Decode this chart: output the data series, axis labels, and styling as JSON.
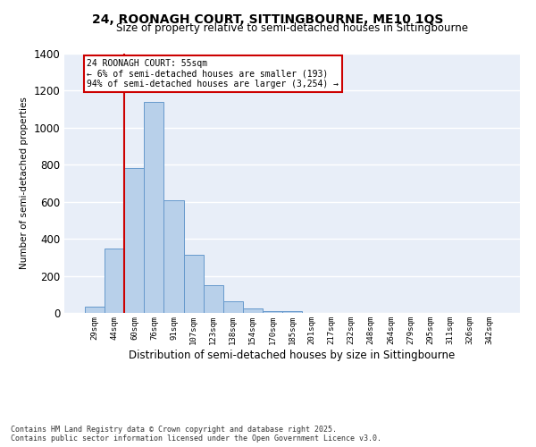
{
  "title1": "24, ROONAGH COURT, SITTINGBOURNE, ME10 1QS",
  "title2": "Size of property relative to semi-detached houses in Sittingbourne",
  "xlabel": "Distribution of semi-detached houses by size in Sittingbourne",
  "ylabel": "Number of semi-detached properties",
  "categories": [
    "29sqm",
    "44sqm",
    "60sqm",
    "76sqm",
    "91sqm",
    "107sqm",
    "123sqm",
    "138sqm",
    "154sqm",
    "170sqm",
    "185sqm",
    "201sqm",
    "217sqm",
    "232sqm",
    "248sqm",
    "264sqm",
    "279sqm",
    "295sqm",
    "311sqm",
    "326sqm",
    "342sqm"
  ],
  "values": [
    35,
    350,
    780,
    1140,
    610,
    315,
    150,
    65,
    25,
    10,
    10,
    0,
    0,
    0,
    0,
    0,
    0,
    0,
    0,
    0,
    0
  ],
  "bar_color": "#b8d0ea",
  "bar_edge_color": "#6699cc",
  "background_color": "#e8eef8",
  "grid_color": "#ffffff",
  "red_line_x": 1.5,
  "annotation_title": "24 ROONAGH COURT: 55sqm",
  "annotation_line1": "← 6% of semi-detached houses are smaller (193)",
  "annotation_line2": "94% of semi-detached houses are larger (3,254) →",
  "annotation_box_color": "#ffffff",
  "annotation_box_edge": "#cc0000",
  "red_line_color": "#cc0000",
  "footer1": "Contains HM Land Registry data © Crown copyright and database right 2025.",
  "footer2": "Contains public sector information licensed under the Open Government Licence v3.0.",
  "ylim": [
    0,
    1400
  ],
  "yticks": [
    0,
    200,
    400,
    600,
    800,
    1000,
    1200,
    1400
  ]
}
